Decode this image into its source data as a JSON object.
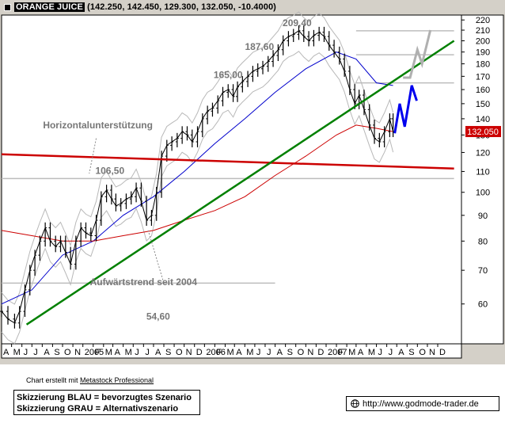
{
  "header": {
    "symbol": "ORANGE JUICE",
    "ohlc": "(142.250, 142.450, 129.300, 132.050, -10.4000)"
  },
  "chart_data": {
    "type": "candlestick-line",
    "instrument": "ORANGE JUICE",
    "last_price": "132.050",
    "y_axis": {
      "ylim": [
        50,
        225
      ],
      "scale": "log",
      "ticks": [
        60,
        70,
        80,
        90,
        100,
        110,
        120,
        130,
        140,
        150,
        160,
        170,
        180,
        190,
        200,
        210,
        220
      ]
    },
    "x_axis": {
      "start": "2004-04",
      "end": "2007-12",
      "tick_labels": [
        "A",
        "M",
        "J",
        "J",
        "A",
        "S",
        "O",
        "N",
        "2005",
        "F",
        "M",
        "A",
        "M",
        "J",
        "J",
        "A",
        "S",
        "O",
        "N",
        "D",
        "2006",
        "F",
        "M",
        "A",
        "M",
        "J",
        "J",
        "A",
        "S",
        "O",
        "N",
        "D",
        "2007",
        "F",
        "M",
        "A",
        "M",
        "J",
        "J",
        "A",
        "S",
        "O",
        "N",
        "D"
      ]
    },
    "price_points": [
      [
        "2004-04-01",
        58
      ],
      [
        "2004-04-20",
        56
      ],
      [
        "2004-05-10",
        55
      ],
      [
        "2004-05-25",
        58
      ],
      [
        "2004-06-10",
        64
      ],
      [
        "2004-06-25",
        70
      ],
      [
        "2004-07-10",
        75
      ],
      [
        "2004-07-25",
        80
      ],
      [
        "2004-08-10",
        85
      ],
      [
        "2004-08-25",
        80
      ],
      [
        "2004-09-10",
        78
      ],
      [
        "2004-09-25",
        80
      ],
      [
        "2004-10-10",
        76
      ],
      [
        "2004-10-25",
        72
      ],
      [
        "2004-11-10",
        80
      ],
      [
        "2004-11-25",
        85
      ],
      [
        "2004-12-10",
        83
      ],
      [
        "2004-12-25",
        82
      ],
      [
        "2005-01-10",
        88
      ],
      [
        "2005-01-25",
        98
      ],
      [
        "2005-02-10",
        101
      ],
      [
        "2005-02-25",
        97
      ],
      [
        "2005-03-10",
        94
      ],
      [
        "2005-03-25",
        95
      ],
      [
        "2005-04-10",
        97
      ],
      [
        "2005-04-25",
        98
      ],
      [
        "2005-05-10",
        102
      ],
      [
        "2005-05-25",
        96
      ],
      [
        "2005-06-10",
        88
      ],
      [
        "2005-06-25",
        90
      ],
      [
        "2005-07-10",
        100
      ],
      [
        "2005-07-25",
        118
      ],
      [
        "2005-08-10",
        124
      ],
      [
        "2005-08-25",
        126
      ],
      [
        "2005-09-10",
        128
      ],
      [
        "2005-09-25",
        132
      ],
      [
        "2005-10-10",
        130
      ],
      [
        "2005-10-25",
        126
      ],
      [
        "2005-11-10",
        132
      ],
      [
        "2005-11-25",
        140
      ],
      [
        "2005-12-10",
        145
      ],
      [
        "2005-12-25",
        147
      ],
      [
        "2006-01-10",
        152
      ],
      [
        "2006-01-25",
        158
      ],
      [
        "2006-02-10",
        160
      ],
      [
        "2006-02-25",
        155
      ],
      [
        "2006-03-10",
        162
      ],
      [
        "2006-03-25",
        166
      ],
      [
        "2006-04-10",
        170
      ],
      [
        "2006-04-25",
        174
      ],
      [
        "2006-05-10",
        176
      ],
      [
        "2006-05-25",
        178
      ],
      [
        "2006-06-10",
        182
      ],
      [
        "2006-06-25",
        187
      ],
      [
        "2006-07-10",
        192
      ],
      [
        "2006-07-25",
        200
      ],
      [
        "2006-08-10",
        204
      ],
      [
        "2006-08-25",
        206
      ],
      [
        "2006-09-10",
        209.4
      ],
      [
        "2006-09-25",
        204
      ],
      [
        "2006-10-10",
        200
      ],
      [
        "2006-10-25",
        205
      ],
      [
        "2006-11-10",
        208
      ],
      [
        "2006-11-25",
        204
      ],
      [
        "2006-12-10",
        196
      ],
      [
        "2006-12-25",
        190
      ],
      [
        "2007-01-10",
        184
      ],
      [
        "2007-01-25",
        174
      ],
      [
        "2007-02-10",
        160
      ],
      [
        "2007-02-25",
        150
      ],
      [
        "2007-03-10",
        156
      ],
      [
        "2007-03-25",
        146
      ],
      [
        "2007-04-10",
        136
      ],
      [
        "2007-04-25",
        128
      ],
      [
        "2007-05-10",
        126
      ],
      [
        "2007-05-25",
        132
      ],
      [
        "2007-06-10",
        140
      ],
      [
        "2007-06-20",
        132.05
      ]
    ],
    "series": [
      {
        "name": "",
        "color": "#0000cc",
        "points": [
          [
            "2004-04-01",
            60
          ],
          [
            "2004-07-01",
            64
          ],
          [
            "2004-10-01",
            75
          ],
          [
            "2005-01-01",
            80
          ],
          [
            "2005-04-01",
            90
          ],
          [
            "2005-07-01",
            98
          ],
          [
            "2005-10-01",
            110
          ],
          [
            "2006-01-01",
            125
          ],
          [
            "2006-04-01",
            140
          ],
          [
            "2006-07-01",
            158
          ],
          [
            "2006-10-01",
            176
          ],
          [
            "2007-01-01",
            190
          ],
          [
            "2007-03-01",
            184
          ],
          [
            "2007-05-01",
            165
          ],
          [
            "2007-06-20",
            163
          ]
        ]
      },
      {
        "name": "",
        "color": "#cc0000",
        "points": [
          [
            "2004-04-01",
            84
          ],
          [
            "2004-07-01",
            82
          ],
          [
            "2004-10-01",
            80
          ],
          [
            "2005-01-01",
            80
          ],
          [
            "2005-04-01",
            82
          ],
          [
            "2005-07-01",
            84
          ],
          [
            "2005-10-01",
            88
          ],
          [
            "2006-01-01",
            92
          ],
          [
            "2006-04-01",
            98
          ],
          [
            "2006-07-01",
            108
          ],
          [
            "2006-10-01",
            118
          ],
          [
            "2007-01-01",
            130
          ],
          [
            "2007-03-01",
            136
          ],
          [
            "2007-05-01",
            134
          ],
          [
            "2007-06-20",
            132
          ]
        ]
      }
    ],
    "lines": [
      {
        "label": "Horizontalunterstützung",
        "color": "#cc0000",
        "from": [
          "2004-04-01",
          119
        ],
        "to": [
          "2007-12-20",
          111.5
        ]
      },
      {
        "label": "Aufwärtstrend seit 2004",
        "color": "#008000",
        "from": [
          "2004-06-15",
          54.6
        ],
        "to": [
          "2007-12-20",
          200
        ]
      },
      {
        "label": "",
        "color": "#c0c0c0",
        "from": [
          "2004-04-01",
          106.5
        ],
        "to": [
          "2007-12-20",
          106.5
        ]
      },
      {
        "label": "",
        "color": "#c0c0c0",
        "from": [
          "2004-04-01",
          66
        ],
        "to": [
          "2006-07-01",
          66
        ]
      },
      {
        "label": "",
        "color": "#c0c0c0",
        "from": [
          "2007-03-01",
          209.4
        ],
        "to": [
          "2007-12-20",
          209.4
        ]
      },
      {
        "label": "",
        "color": "#c0c0c0",
        "from": [
          "2007-03-01",
          187.6
        ],
        "to": [
          "2007-12-20",
          187.6
        ]
      },
      {
        "label": "",
        "color": "#c0c0c0",
        "from": [
          "2007-03-01",
          165
        ],
        "to": [
          "2007-12-20",
          165
        ]
      }
    ],
    "scenarios": [
      {
        "label": "Skizzierung BLAU = bevorzugtes Szenario",
        "color": "#0000ee",
        "points": [
          [
            "2007-06-25",
            131
          ],
          [
            "2007-07-10",
            150
          ],
          [
            "2007-07-25",
            135
          ],
          [
            "2007-08-15",
            163
          ],
          [
            "2007-08-30",
            152
          ]
        ]
      },
      {
        "label": "Skizzierung GRAU = Alternativszenario",
        "color": "#b0b0b0",
        "points": [
          [
            "2007-07-20",
            169
          ],
          [
            "2007-08-10",
            169
          ],
          [
            "2007-09-01",
            192
          ],
          [
            "2007-09-15",
            180
          ],
          [
            "2007-10-10",
            210
          ]
        ]
      }
    ],
    "annotations": [
      {
        "text": "209,40",
        "at": [
          "2006-09-05",
          209.4
        ]
      },
      {
        "text": "187,60",
        "at": [
          "2006-05-15",
          187.6
        ]
      },
      {
        "text": "165,00",
        "at": [
          "2006-02-10",
          165
        ]
      },
      {
        "text": "106,50",
        "at": [
          "2005-02-20",
          106.5
        ]
      },
      {
        "text": "54,60",
        "at": [
          "2005-07-15",
          54.6
        ]
      },
      {
        "text": "Horizontalunterstützung",
        "at": [
          "2005-01-15",
          131
        ]
      },
      {
        "text": "Aufwärtstrend seit 2004",
        "at": [
          "2005-06-01",
          64
        ]
      }
    ]
  },
  "footer": {
    "credit_prefix": "Chart erstellt mit ",
    "credit_link": "Metastock Professional",
    "legend_blue": "Skizzierung BLAU = bevorzugtes Szenario",
    "legend_grey": "Skizzierung GRAU = Alternativszenario",
    "url": "http://www.godmode-trader.de"
  }
}
